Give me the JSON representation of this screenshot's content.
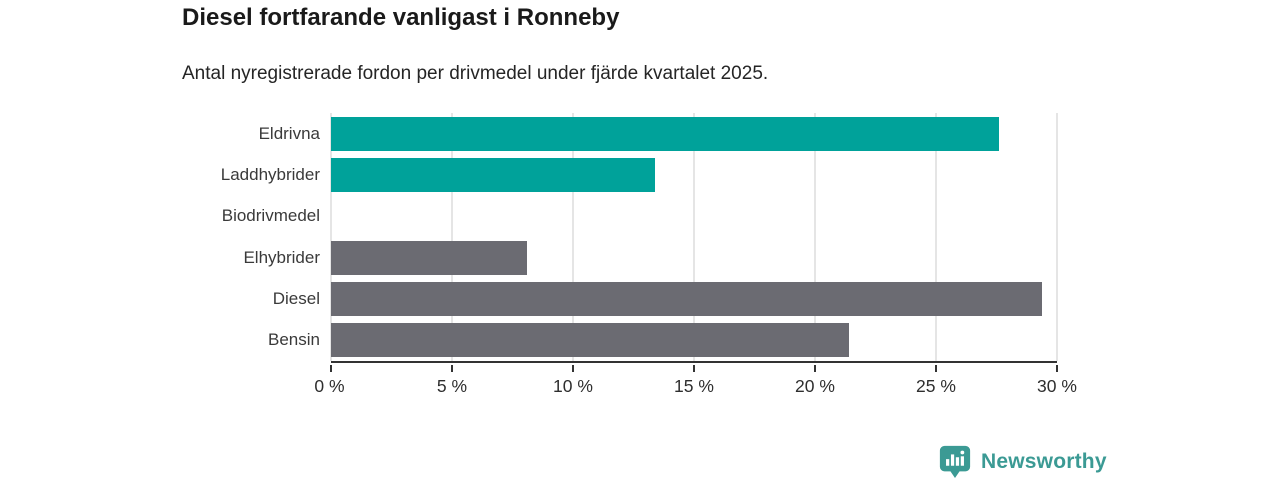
{
  "header": {
    "title": "Diesel fortfarande vanligast i Ronneby",
    "subtitle": "Antal nyregistrerade fordon per drivmedel under fjärde kvartalet 2025."
  },
  "chart_data": {
    "type": "bar",
    "orientation": "horizontal",
    "title": "Diesel fortfarande vanligast i Ronneby",
    "subtitle": "Antal nyregistrerade fordon per drivmedel under fjärde kvartalet 2025.",
    "categories": [
      "Eldrivna",
      "Laddhybrider",
      "Biodrivmedel",
      "Elhybrider",
      "Diesel",
      "Bensin"
    ],
    "values": [
      27.6,
      13.4,
      0,
      8.1,
      29.4,
      21.4
    ],
    "bar_colors": [
      "#00a29a",
      "#00a29a",
      "#00a29a",
      "#6b6b72",
      "#6b6b72",
      "#6b6b72"
    ],
    "xlabel": "",
    "ylabel": "",
    "xlim": [
      0,
      30
    ],
    "x_ticks": [
      0,
      5,
      10,
      15,
      20,
      25,
      30
    ],
    "x_tick_labels": [
      "0 %",
      "5 %",
      "10 %",
      "15 %",
      "20 %",
      "25 %",
      "30 %"
    ],
    "grid": "vertical",
    "legend": "none",
    "unit": "%"
  },
  "colors": {
    "accent_teal": "#00a29a",
    "neutral_gray": "#6b6b72",
    "gridline": "#e5e5e5",
    "axis_line": "#333333",
    "title_text": "#1a1a1a",
    "brand_teal": "#3b9a94"
  },
  "footer": {
    "brand": "Newsworthy",
    "logo_icon": "bar-chart-pin-icon"
  }
}
